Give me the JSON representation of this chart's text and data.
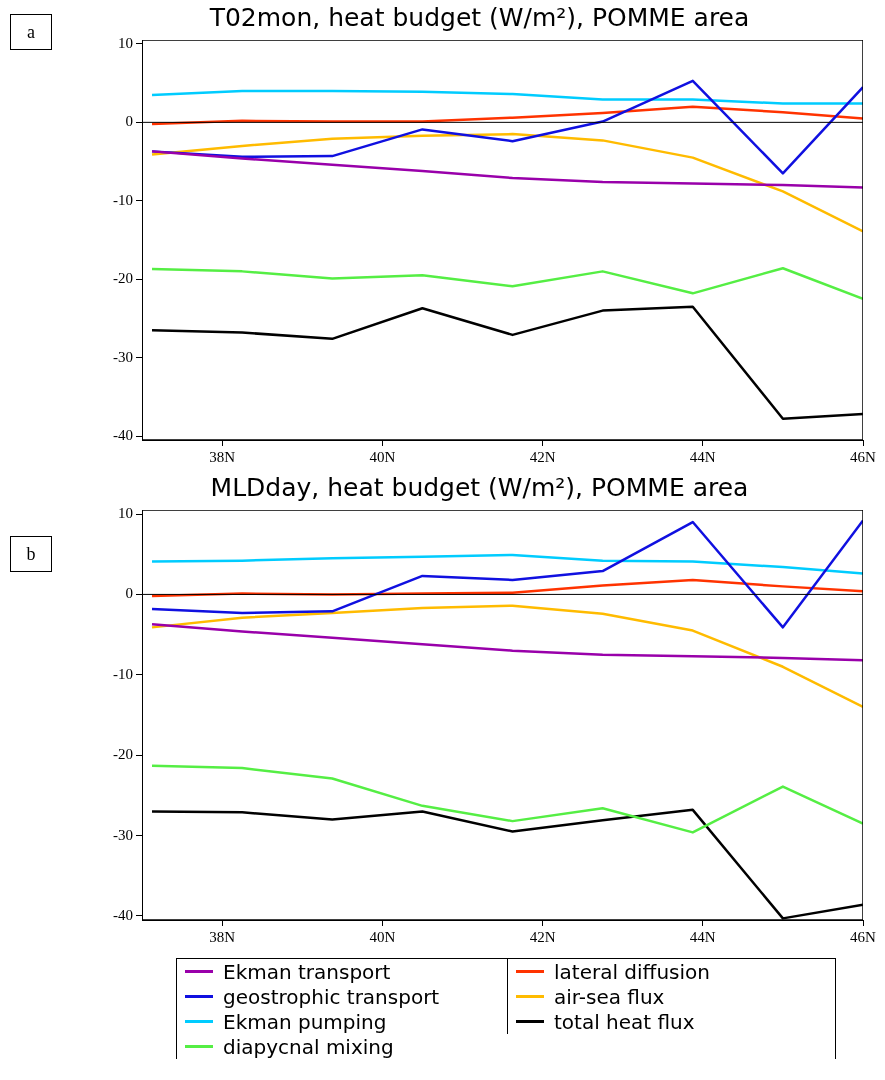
{
  "chart_data": [
    {
      "type": "line",
      "title": "T02mon, heat budget (W/m²), POMME area",
      "annotations": [
        "a"
      ],
      "x": [
        37.125,
        38.25,
        39.375,
        40.5,
        41.625,
        42.75,
        43.875,
        45,
        46
      ],
      "xlim": [
        37,
        46
      ],
      "xticks": [
        {
          "value": 38,
          "label": "38N"
        },
        {
          "value": 40,
          "label": "40N"
        },
        {
          "value": 42,
          "label": "42N"
        },
        {
          "value": 44,
          "label": "44N"
        },
        {
          "value": 46,
          "label": "46N"
        }
      ],
      "ylim": [
        -40.5,
        10.5
      ],
      "yticks": [
        -40,
        -30,
        -20,
        -10,
        0,
        10
      ],
      "grid": false,
      "legend": false,
      "marker": "none",
      "line_style": "solid",
      "ref_lines": [
        {
          "axis": "y",
          "value": 0,
          "color": "#000000"
        }
      ],
      "series": [
        {
          "color": "#9900aa",
          "values": [
            -3.7,
            -4.6,
            -5.4,
            -6.2,
            -7.1,
            -7.6,
            -7.8,
            -8.0,
            -8.3
          ]
        },
        {
          "color": "#1010e0",
          "values": [
            -3.7,
            -4.4,
            -4.3,
            -0.9,
            -2.4,
            0.1,
            5.3,
            -6.5,
            4.5
          ]
        },
        {
          "color": "#00ccff",
          "values": [
            3.5,
            4.0,
            4.0,
            3.9,
            3.6,
            2.9,
            2.9,
            2.4,
            2.4
          ]
        },
        {
          "color": "#55ee44",
          "values": [
            -18.7,
            -19.0,
            -19.9,
            -19.5,
            -20.9,
            -19.0,
            -21.8,
            -18.6,
            -22.5
          ]
        },
        {
          "color": "#ff3300",
          "values": [
            -0.2,
            0.2,
            0.1,
            0.1,
            0.6,
            1.2,
            2.0,
            1.3,
            0.5
          ]
        },
        {
          "color": "#ffbb00",
          "values": [
            -4.1,
            -3.0,
            -2.1,
            -1.7,
            -1.5,
            -2.3,
            -4.5,
            -8.8,
            -13.9
          ]
        },
        {
          "color": "#000000",
          "values": [
            -26.5,
            -26.8,
            -27.6,
            -23.7,
            -27.1,
            -24.0,
            -23.5,
            -37.8,
            -37.2
          ]
        }
      ]
    },
    {
      "type": "line",
      "title": "MLDday, heat budget (W/m²), POMME area",
      "annotations": [
        "b"
      ],
      "x": [
        37.125,
        38.25,
        39.375,
        40.5,
        41.625,
        42.75,
        43.875,
        45,
        46
      ],
      "xlim": [
        37,
        46
      ],
      "xticks": [
        {
          "value": 38,
          "label": "38N"
        },
        {
          "value": 40,
          "label": "40N"
        },
        {
          "value": 42,
          "label": "42N"
        },
        {
          "value": 44,
          "label": "44N"
        },
        {
          "value": 46,
          "label": "46N"
        }
      ],
      "ylim": [
        -40.5,
        10.5
      ],
      "yticks": [
        -40,
        -30,
        -20,
        -10,
        0,
        10
      ],
      "grid": false,
      "legend": "bottom",
      "marker": "none",
      "line_style": "solid",
      "ref_lines": [
        {
          "axis": "y",
          "value": 0,
          "color": "#000000"
        }
      ],
      "series": [
        {
          "name": "Ekman transport",
          "color": "#9900aa",
          "values": [
            -3.7,
            -4.6,
            -5.4,
            -6.2,
            -7.0,
            -7.5,
            -7.7,
            -7.9,
            -8.2
          ]
        },
        {
          "name": "geostrophic transport",
          "color": "#1010e0",
          "values": [
            -1.8,
            -2.3,
            -2.1,
            2.3,
            1.8,
            2.9,
            9.0,
            -4.1,
            9.2
          ]
        },
        {
          "name": "Ekman pumping",
          "color": "#00ccff",
          "values": [
            4.1,
            4.2,
            4.5,
            4.7,
            4.9,
            4.2,
            4.1,
            3.4,
            2.6
          ]
        },
        {
          "name": "diapycnal mixing",
          "color": "#55ee44",
          "values": [
            -21.3,
            -21.6,
            -22.9,
            -26.3,
            -28.2,
            -26.6,
            -29.6,
            -23.9,
            -28.5
          ]
        },
        {
          "name": "lateral diffusion",
          "color": "#ff3300",
          "values": [
            -0.2,
            0.1,
            0,
            0.1,
            0.2,
            1.1,
            1.8,
            1.0,
            0.4
          ]
        },
        {
          "name": "air-sea flux",
          "color": "#ffbb00",
          "values": [
            -4.1,
            -2.9,
            -2.3,
            -1.7,
            -1.4,
            -2.4,
            -4.5,
            -9.0,
            -14.0
          ]
        },
        {
          "name": "total heat flux",
          "color": "#000000",
          "values": [
            -27.0,
            -27.1,
            -28.0,
            -27.0,
            -29.5,
            -28.1,
            -26.8,
            -40.3,
            -38.6
          ]
        }
      ]
    }
  ]
}
